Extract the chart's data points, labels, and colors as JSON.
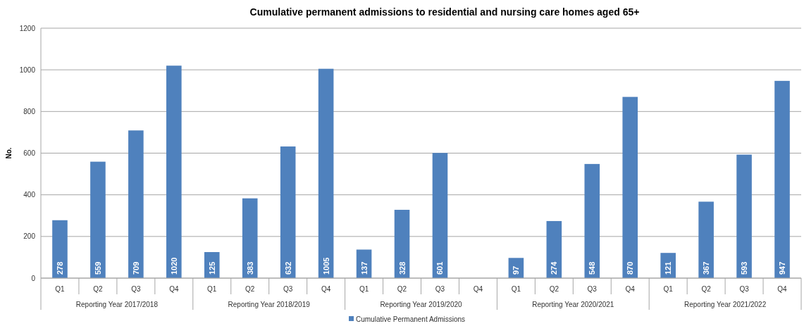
{
  "chart_data": {
    "type": "bar",
    "title": "Cumulative permanent admissions to residential and nursing care homes aged 65+",
    "ylabel": "No.",
    "categories": [
      "Q1",
      "Q2",
      "Q3",
      "Q4",
      "Q1",
      "Q2",
      "Q3",
      "Q4",
      "Q1",
      "Q2",
      "Q3",
      "Q4",
      "Q1",
      "Q2",
      "Q3",
      "Q4",
      "Q1",
      "Q2",
      "Q3",
      "Q4"
    ],
    "annotations": [
      "Reporting Year 2017/2018",
      "Reporting Year 2018/2019",
      "Reporting Year 2019/2020",
      "Reporting Year 2020/2021",
      "Reporting Year 2021/2022"
    ],
    "series": [
      {
        "name": "Cumulative Permanent Admissions",
        "color": "#4f81bd",
        "values": [
          278,
          559,
          709,
          1020,
          125,
          383,
          632,
          1005,
          137,
          328,
          601,
          null,
          97,
          274,
          548,
          870,
          121,
          367,
          593,
          947
        ]
      }
    ],
    "ylim": [
      0,
      1200
    ],
    "yticks": [
      0,
      200,
      400,
      600,
      800,
      1000,
      1200
    ],
    "grid": "y",
    "legend": "bottom",
    "data_labels": true
  }
}
